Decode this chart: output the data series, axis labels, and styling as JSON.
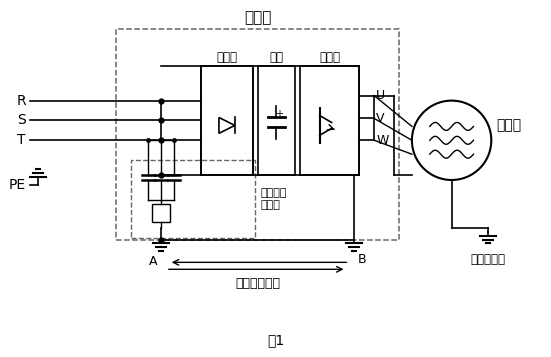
{
  "title": "图1",
  "bg_color": "#ffffff",
  "line_color": "#000000",
  "dash_color": "#666666",
  "labels": {
    "inverter_box": "变频器",
    "rectifier": "整流桥",
    "capacitor": "电容",
    "inverter_bridge": "逆变桥",
    "filter": "感应浪涌\n滤波器",
    "motor": "电动机",
    "R": "R",
    "S": "S",
    "T": "T",
    "PE": "PE",
    "U": "U",
    "V": "V",
    "W": "W",
    "A": "A",
    "B": "B",
    "ground_label": "变频器接地端",
    "motor_ground": "电机接地端"
  }
}
